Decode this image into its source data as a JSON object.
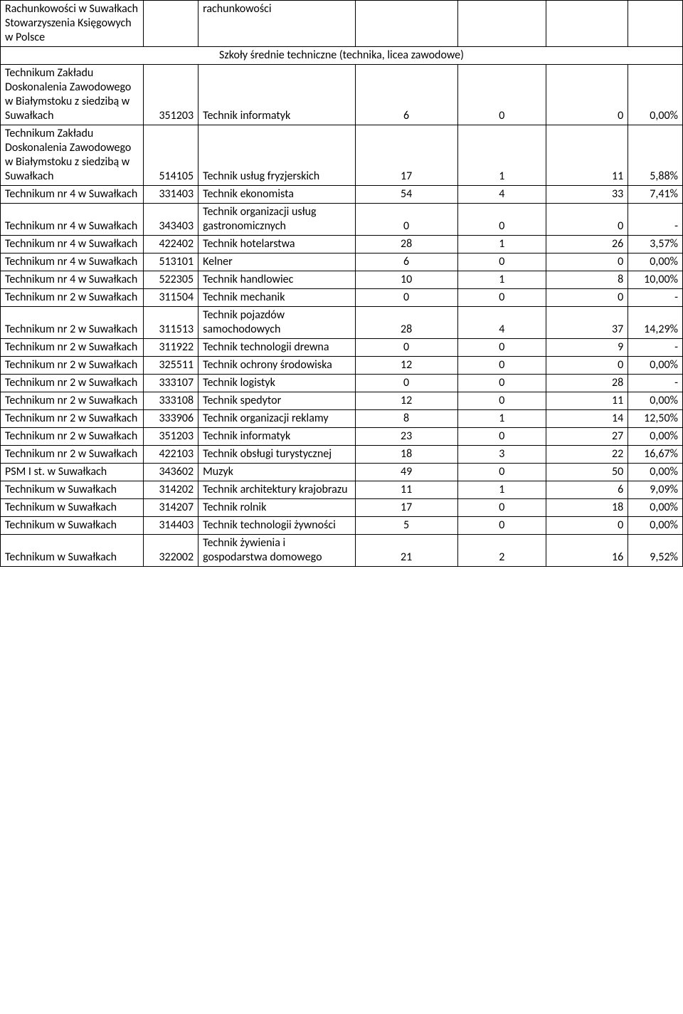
{
  "table": {
    "header_row": {
      "school": "Rachunkowości w Suwałkach Stowarzyszenia Księgowych w Polsce",
      "prof": "rachunkowości"
    },
    "section_title": "Szkoły średnie techniczne (technika, licea zawodowe)",
    "rows": [
      {
        "school": "Technikum Zakładu Doskonalenia Zawodowego w Białymstoku z siedzibą w Suwałkach",
        "code": "351203",
        "prof": "Technik informatyk",
        "n1": "6",
        "n2": "0",
        "n3": "0",
        "pct": "0,00%"
      },
      {
        "school": "Technikum Zakładu Doskonalenia Zawodowego w Białymstoku z siedzibą w Suwałkach",
        "code": "514105",
        "prof": "Technik usług fryzjerskich",
        "n1": "17",
        "n2": "1",
        "n3": "11",
        "pct": "5,88%"
      },
      {
        "school": "Technikum nr 4 w Suwałkach",
        "code": "331403",
        "prof": "Technik ekonomista",
        "n1": "54",
        "n2": "4",
        "n3": "33",
        "pct": "7,41%"
      },
      {
        "school": "Technikum nr 4 w Suwałkach",
        "code": "343403",
        "prof": "Technik organizacji usług gastronomicznych",
        "n1": "0",
        "n2": "0",
        "n3": "0",
        "pct": "-"
      },
      {
        "school": "Technikum nr 4 w Suwałkach",
        "code": "422402",
        "prof": "Technik hotelarstwa",
        "n1": "28",
        "n2": "1",
        "n3": "26",
        "pct": "3,57%"
      },
      {
        "school": "Technikum nr 4 w Suwałkach",
        "code": "513101",
        "prof": "Kelner",
        "n1": "6",
        "n2": "0",
        "n3": "0",
        "pct": "0,00%"
      },
      {
        "school": "Technikum nr 4 w Suwałkach",
        "code": "522305",
        "prof": "Technik handlowiec",
        "n1": "10",
        "n2": "1",
        "n3": "8",
        "pct": "10,00%"
      },
      {
        "school": "Technikum nr 2 w Suwałkach",
        "code": "311504",
        "prof": "Technik mechanik",
        "n1": "0",
        "n2": "0",
        "n3": "0",
        "pct": "-"
      },
      {
        "school": "Technikum nr 2 w Suwałkach",
        "code": "311513",
        "prof": "Technik pojazdów samochodowych",
        "n1": "28",
        "n2": "4",
        "n3": "37",
        "pct": "14,29%"
      },
      {
        "school": "Technikum nr 2 w Suwałkach",
        "code": "311922",
        "prof": "Technik technologii drewna",
        "n1": "0",
        "n2": "0",
        "n3": "9",
        "pct": "-"
      },
      {
        "school": "Technikum nr 2 w Suwałkach",
        "code": "325511",
        "prof": "Technik ochrony środowiska",
        "n1": "12",
        "n2": "0",
        "n3": "0",
        "pct": "0,00%"
      },
      {
        "school": "Technikum nr 2 w Suwałkach",
        "code": "333107",
        "prof": "Technik logistyk",
        "n1": "0",
        "n2": "0",
        "n3": "28",
        "pct": "-"
      },
      {
        "school": "Technikum nr 2 w Suwałkach",
        "code": "333108",
        "prof": "Technik spedytor",
        "n1": "12",
        "n2": "0",
        "n3": "11",
        "pct": "0,00%"
      },
      {
        "school": "Technikum nr 2 w Suwałkach",
        "code": "333906",
        "prof": "Technik organizacji reklamy",
        "n1": "8",
        "n2": "1",
        "n3": "14",
        "pct": "12,50%"
      },
      {
        "school": "Technikum nr 2 w Suwałkach",
        "code": "351203",
        "prof": "Technik informatyk",
        "n1": "23",
        "n2": "0",
        "n3": "27",
        "pct": "0,00%"
      },
      {
        "school": "Technikum nr 2 w Suwałkach",
        "code": "422103",
        "prof": "Technik obsługi turystycznej",
        "n1": "18",
        "n2": "3",
        "n3": "22",
        "pct": "16,67%"
      },
      {
        "school": "PSM I st. w Suwałkach",
        "code": "343602",
        "prof": "Muzyk",
        "n1": "49",
        "n2": "0",
        "n3": "50",
        "pct": "0,00%"
      },
      {
        "school": "Technikum w Suwałkach",
        "code": "314202",
        "prof": "Technik architektury krajobrazu",
        "n1": "11",
        "n2": "1",
        "n3": "6",
        "pct": "9,09%"
      },
      {
        "school": "Technikum w Suwałkach",
        "code": "314207",
        "prof": "Technik rolnik",
        "n1": "17",
        "n2": "0",
        "n3": "18",
        "pct": "0,00%"
      },
      {
        "school": "Technikum w Suwałkach",
        "code": "314403",
        "prof": "Technik technologii żywności",
        "n1": "5",
        "n2": "0",
        "n3": "0",
        "pct": "0,00%"
      },
      {
        "school": "Technikum w Suwałkach",
        "code": "322002",
        "prof": "Technik żywienia i gospodarstwa domowego",
        "n1": "21",
        "n2": "2",
        "n3": "16",
        "pct": "9,52%"
      }
    ],
    "columns": {
      "widths_pct": [
        21,
        8,
        23,
        15,
        13,
        12,
        8
      ],
      "align": [
        "left",
        "right",
        "left",
        "center",
        "center",
        "right",
        "right"
      ]
    },
    "styling": {
      "font_family": "Calibri",
      "font_size_pt": 12,
      "border_color": "#000000",
      "background_color": "#ffffff",
      "text_color": "#000000"
    }
  }
}
